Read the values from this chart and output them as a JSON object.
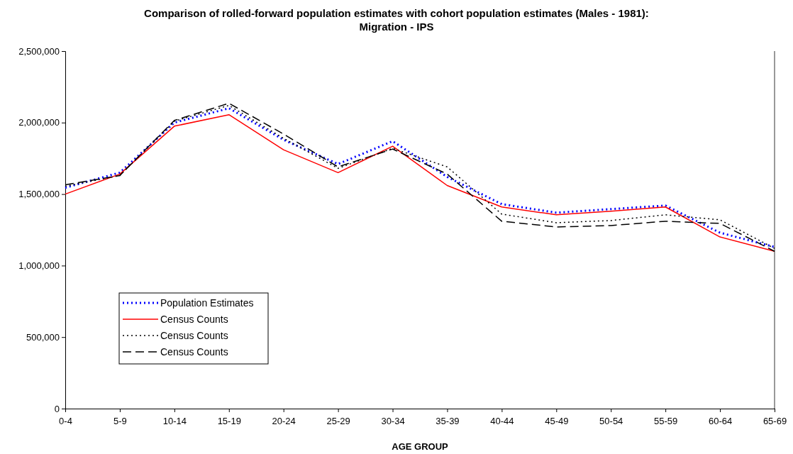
{
  "chart_data": {
    "type": "line",
    "title": "Comparison of rolled-forward population estimates with cohort population estimates (Males - 1981):\nMigration - IPS",
    "xlabel": "AGE GROUP",
    "categories": [
      "0-4",
      "5-9",
      "10-14",
      "15-19",
      "20-24",
      "25-29",
      "30-34",
      "35-39",
      "40-44",
      "45-49",
      "50-54",
      "55-59",
      "60-64",
      "65-69"
    ],
    "ylim": [
      0,
      2500000
    ],
    "yticks": [
      {
        "value": 0,
        "label": "0"
      },
      {
        "value": 500000,
        "label": "500,000"
      },
      {
        "value": 1000000,
        "label": "1,000,000"
      },
      {
        "value": 1500000,
        "label": "1,500,000"
      },
      {
        "value": 2000000,
        "label": "2,000,000"
      },
      {
        "value": 2500000,
        "label": "2,500,000"
      }
    ],
    "grid": false,
    "legend": "bottom left",
    "marker": "none",
    "series": [
      {
        "name": "Population Estimates",
        "color": "#0000ff",
        "line_style": "dotted",
        "values": [
          1545000,
          1650000,
          2000000,
          2100000,
          1880000,
          1710000,
          1870000,
          1620000,
          1430000,
          1370000,
          1395000,
          1420000,
          1230000,
          1130000
        ]
      },
      {
        "name": "Census Counts",
        "color": "#ff0000",
        "line_style": "solid",
        "values": [
          1500000,
          1640000,
          1975000,
          2055000,
          1810000,
          1650000,
          1835000,
          1560000,
          1410000,
          1355000,
          1380000,
          1410000,
          1200000,
          1100000
        ]
      },
      {
        "name": "Census Counts",
        "color": "#000000",
        "line_style": "dotted",
        "values": [
          1555000,
          1630000,
          2010000,
          2120000,
          1890000,
          1680000,
          1820000,
          1690000,
          1360000,
          1300000,
          1315000,
          1355000,
          1320000,
          1120000
        ]
      },
      {
        "name": "Census Counts",
        "color": "#000000",
        "line_style": "dashed",
        "values": [
          1565000,
          1630000,
          2015000,
          2135000,
          1920000,
          1690000,
          1815000,
          1640000,
          1310000,
          1270000,
          1280000,
          1310000,
          1295000,
          1100000
        ]
      }
    ]
  }
}
